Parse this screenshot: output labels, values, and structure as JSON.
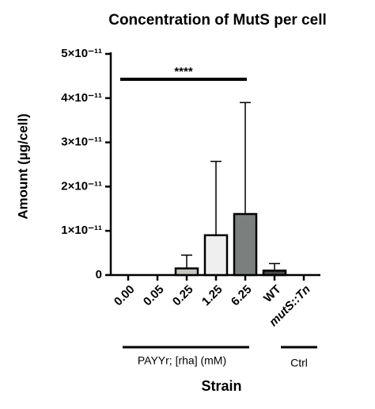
{
  "chart_data": {
    "type": "bar",
    "title": "Concentration of MutS per cell",
    "x_label": "Strain",
    "y_label": "Amount (µg/cell)",
    "categories": [
      "0.00",
      "0.05",
      "0.25",
      "1.25",
      "6.25",
      "WT",
      "mutS::Tn"
    ],
    "values": [
      0,
      0,
      1.5e-12,
      9e-12,
      1.38e-11,
      1e-12,
      0
    ],
    "errors": [
      0,
      0,
      3e-12,
      1.67e-11,
      2.52e-11,
      1.6e-12,
      0
    ],
    "colors": [
      "#b0b0b0",
      "#b0b0b0",
      "#c4c7c0",
      "#efefef",
      "#7b7f7e",
      "#4a4a4a",
      "#4a4a4a"
    ],
    "ylim": [
      0,
      5e-11
    ],
    "yticks": [
      0,
      {
        "value": 1e-11,
        "label": "1×10⁻¹¹"
      },
      {
        "value": 2e-11,
        "label": "2×10⁻¹¹"
      },
      {
        "value": 3e-11,
        "label": "3×10⁻¹¹"
      },
      {
        "value": 4e-11,
        "label": "4×10⁻¹¹"
      },
      {
        "value": 5e-11,
        "label": "5×10⁻¹¹"
      }
    ],
    "annotation": "****",
    "groups": [
      "PAYYr; [rha] (mM)",
      "Ctrl"
    ]
  }
}
